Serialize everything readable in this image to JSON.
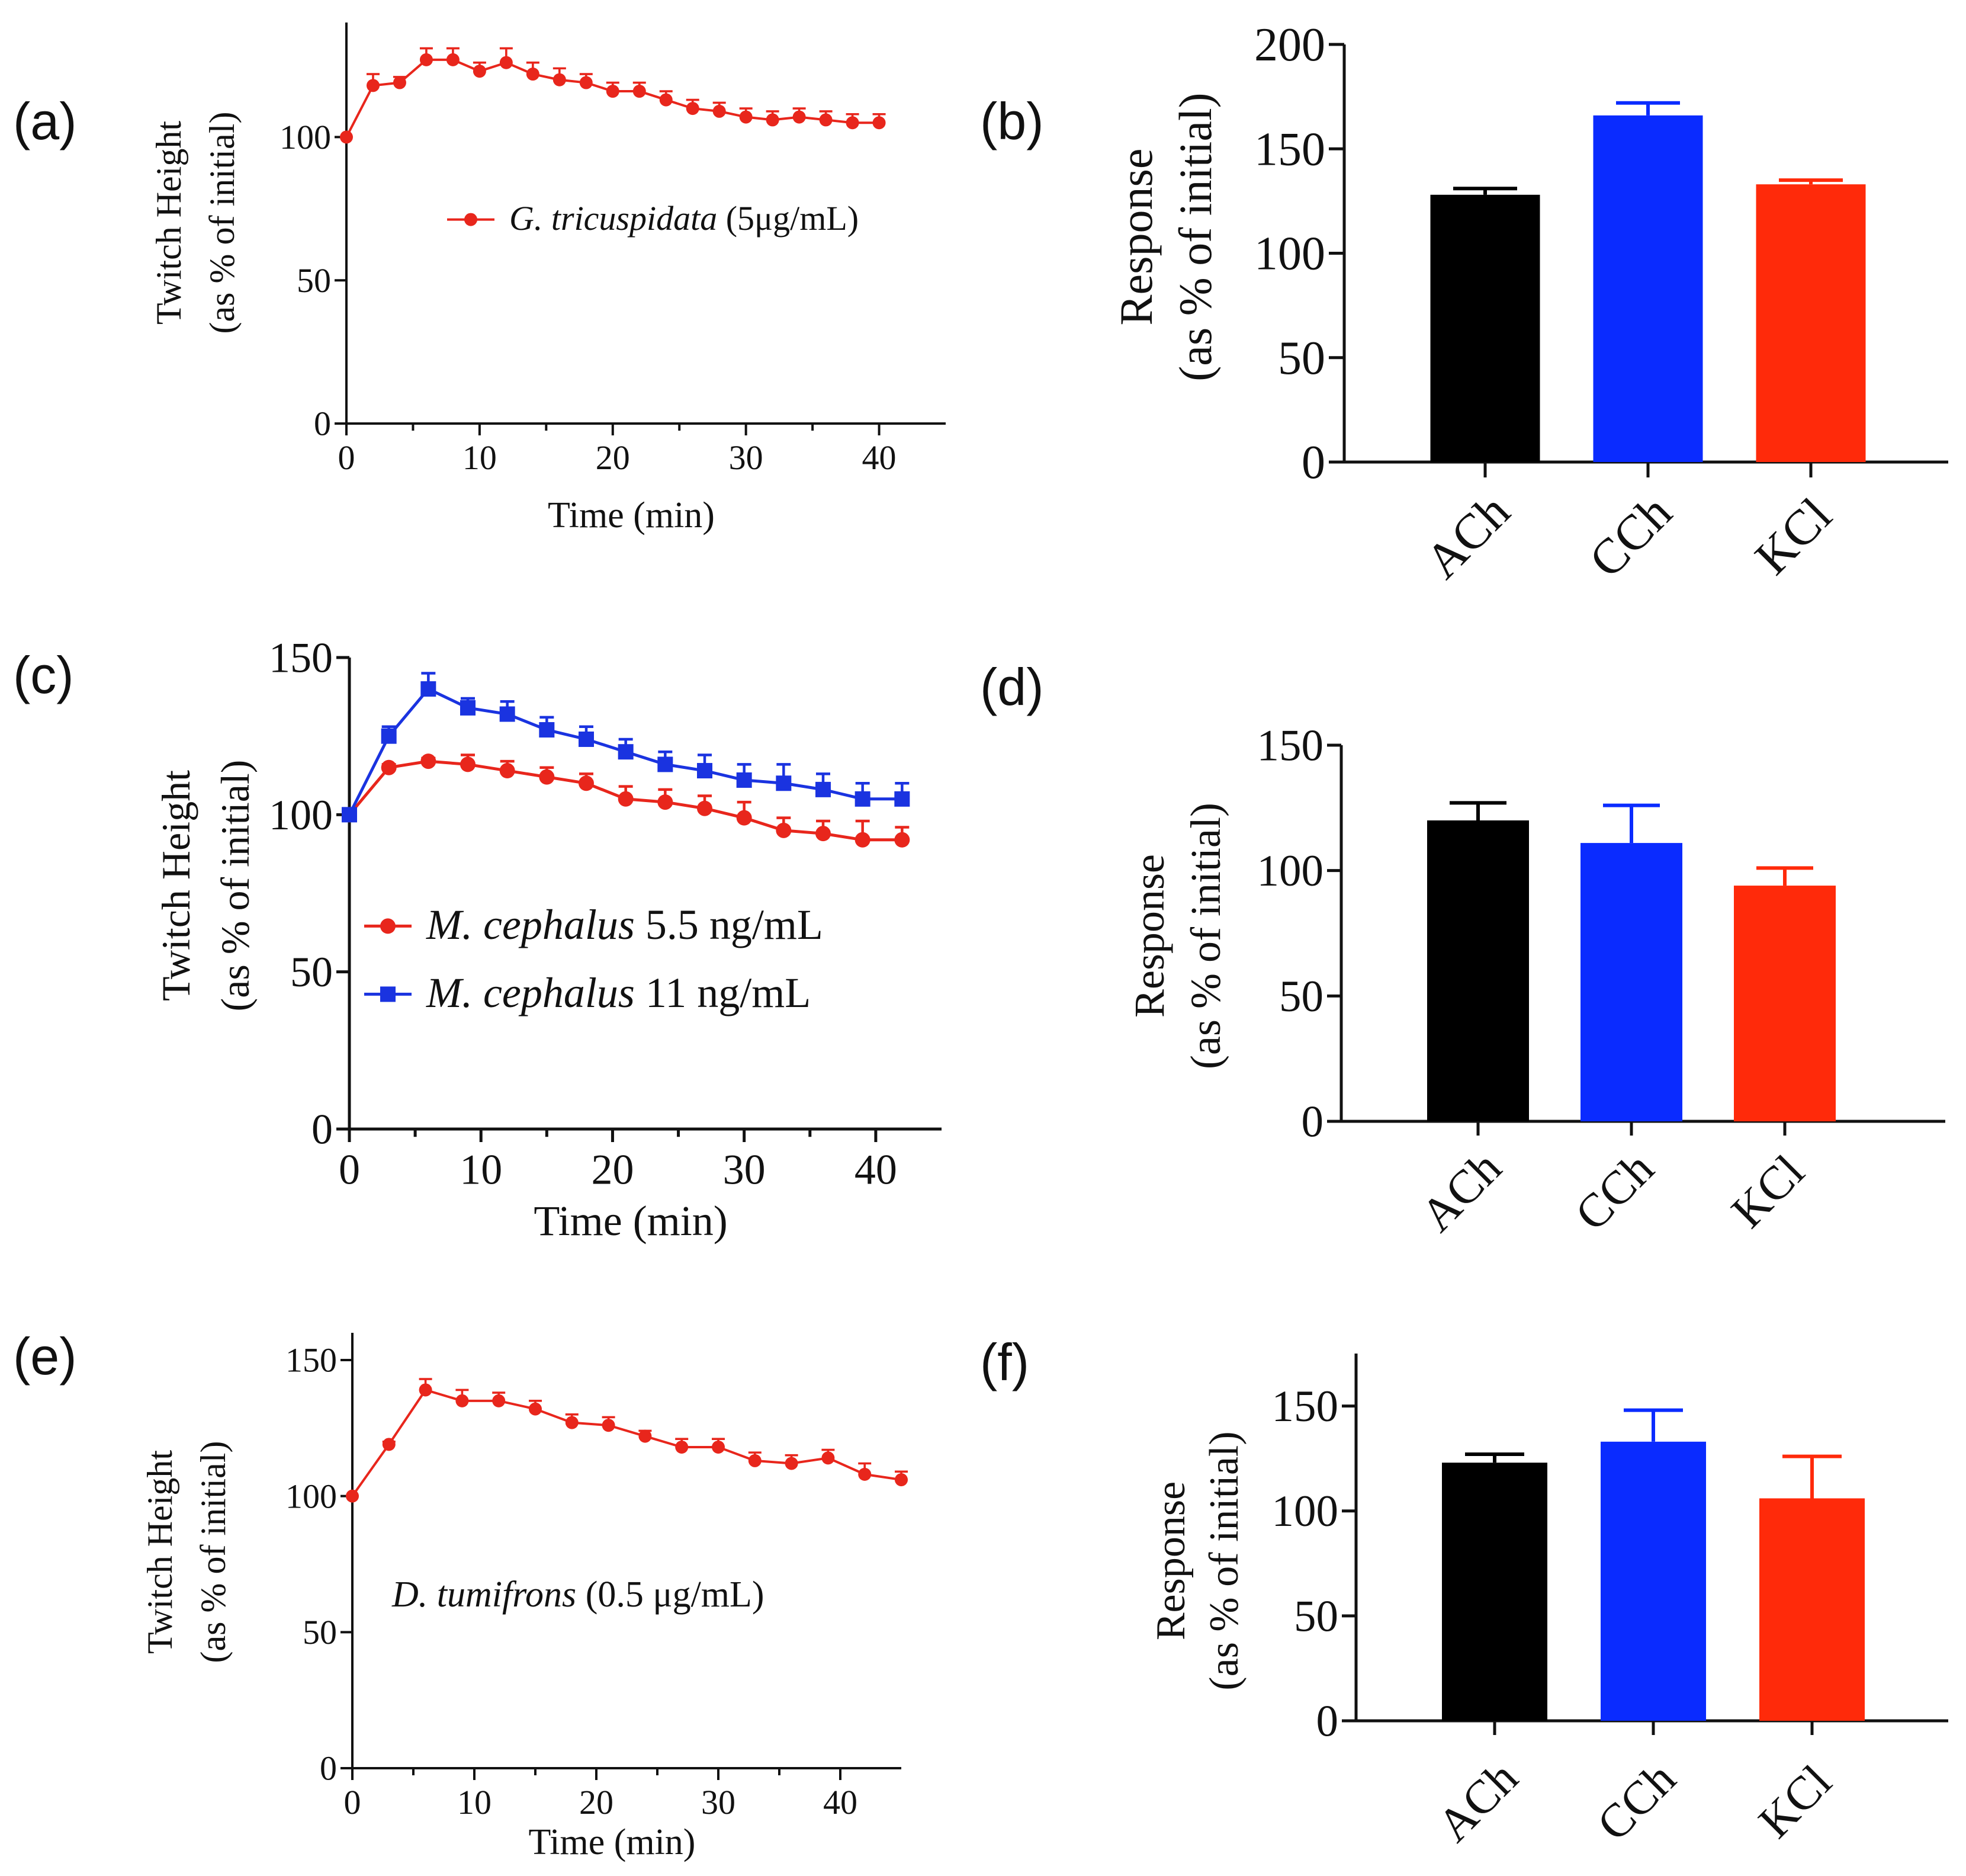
{
  "chart_data": [
    {
      "panel": "(a)",
      "type": "line",
      "title": "",
      "xlabel": "Time (min)",
      "ylabel": [
        "Twitch Height",
        "(as % of initial)"
      ],
      "xlim": [
        0,
        45
      ],
      "ylim": [
        0,
        140
      ],
      "xticks": [
        "0",
        "10",
        "20",
        "30",
        "40"
      ],
      "yticks": [
        "0",
        "50",
        "100"
      ],
      "legend": [
        {
          "species": "G. tricuspidata",
          "rest": " (5μg/mL)"
        }
      ],
      "series": [
        {
          "name": "G. tricuspidata (5μg/mL)",
          "color": "#e8261c",
          "marker": "circle",
          "x": [
            0,
            2,
            4,
            6,
            8,
            10,
            12,
            14,
            16,
            18,
            20,
            22,
            24,
            26,
            28,
            30,
            32,
            34,
            36,
            38,
            40
          ],
          "y": [
            100,
            118,
            119,
            127,
            127,
            123,
            126,
            122,
            120,
            119,
            116,
            116,
            113,
            110,
            109,
            107,
            106,
            107,
            106,
            105,
            105
          ],
          "err": [
            0,
            4,
            2,
            4,
            4,
            3,
            5,
            4,
            4,
            3,
            3,
            3,
            3,
            3,
            3,
            3,
            3,
            3,
            3,
            3,
            3
          ]
        }
      ]
    },
    {
      "panel": "(b)",
      "type": "bar",
      "title": "",
      "xlabel": "",
      "ylabel": [
        "Response",
        "(as % of initial)"
      ],
      "ylim": [
        0,
        200
      ],
      "yticks": [
        "0",
        "50",
        "100",
        "150",
        "200"
      ],
      "categories": [
        "ACh",
        "CCh",
        "KCl"
      ],
      "values": [
        128,
        166,
        133
      ],
      "err": [
        3,
        6,
        2
      ],
      "colors": [
        "#000000",
        "#0a2bff",
        "#ff2a0a"
      ]
    },
    {
      "panel": "(c)",
      "type": "line",
      "title": "",
      "xlabel": "Time (min)",
      "ylabel": [
        "Twitch Height",
        "(as % of initial)"
      ],
      "xlim": [
        0,
        45
      ],
      "ylim": [
        0,
        150
      ],
      "xticks": [
        "0",
        "10",
        "20",
        "30",
        "40"
      ],
      "yticks": [
        "0",
        "50",
        "100",
        "150"
      ],
      "legend": [
        {
          "species": "M. cephalus",
          "rest": " 5.5 ng/mL"
        },
        {
          "species": "M. cephalus",
          "rest": " 11 ng/mL"
        }
      ],
      "series": [
        {
          "name": "M. cephalus 5.5 ng/mL",
          "color": "#e8261c",
          "marker": "circle",
          "x": [
            0,
            3,
            6,
            9,
            12,
            15,
            18,
            21,
            24,
            27,
            30,
            33,
            36,
            39,
            42
          ],
          "y": [
            100,
            115,
            117,
            116,
            114,
            112,
            110,
            105,
            104,
            102,
            99,
            95,
            94,
            92,
            92
          ],
          "err": [
            0,
            1,
            1,
            3,
            3,
            3,
            3,
            4,
            4,
            4,
            5,
            4,
            4,
            6,
            4
          ]
        },
        {
          "name": "M. cephalus 11 ng/mL",
          "color": "#1a33e0",
          "marker": "square",
          "x": [
            0,
            3,
            6,
            9,
            12,
            15,
            18,
            21,
            24,
            27,
            30,
            33,
            36,
            39,
            42
          ],
          "y": [
            100,
            125,
            140,
            134,
            132,
            127,
            124,
            120,
            116,
            114,
            111,
            110,
            108,
            105,
            105
          ],
          "err": [
            0,
            3,
            5,
            3,
            4,
            4,
            4,
            4,
            4,
            5,
            5,
            6,
            5,
            5,
            5
          ]
        }
      ]
    },
    {
      "panel": "(d)",
      "type": "bar",
      "title": "",
      "xlabel": "",
      "ylabel": [
        "Response",
        "(as % of initial)"
      ],
      "ylim": [
        0,
        150
      ],
      "yticks": [
        "0",
        "50",
        "100",
        "150"
      ],
      "categories": [
        "ACh",
        "CCh",
        "KCl"
      ],
      "values": [
        120,
        111,
        94
      ],
      "err": [
        7,
        15,
        7
      ],
      "colors": [
        "#000000",
        "#0a2bff",
        "#ff2a0a"
      ]
    },
    {
      "panel": "(e)",
      "type": "line",
      "title": "",
      "xlabel": "Time (min)",
      "ylabel": [
        "Twitch Height",
        "(as % of initial)"
      ],
      "xlim": [
        0,
        45
      ],
      "ylim": [
        0,
        160
      ],
      "xticks": [
        "0",
        "10",
        "20",
        "30",
        "40"
      ],
      "yticks": [
        "0",
        "50",
        "100",
        "150"
      ],
      "legend": [],
      "annotation": {
        "species": "D. tumifrons",
        "rest": " (0.5 μg/mL)"
      },
      "series": [
        {
          "name": "D. tumifrons (0.5 μg/mL)",
          "color": "#e8261c",
          "marker": "circle",
          "x": [
            0,
            3,
            6,
            9,
            12,
            15,
            18,
            21,
            24,
            27,
            30,
            33,
            36,
            39,
            42,
            45
          ],
          "y": [
            100,
            119,
            139,
            135,
            135,
            132,
            127,
            126,
            122,
            118,
            118,
            113,
            112,
            114,
            108,
            106
          ],
          "err": [
            0,
            1,
            4,
            4,
            3,
            3,
            3,
            3,
            2,
            3,
            3,
            3,
            3,
            3,
            4,
            3
          ]
        }
      ]
    },
    {
      "panel": "(f)",
      "type": "bar",
      "title": "",
      "xlabel": "",
      "ylabel": [
        "Response",
        "(as % of initial)"
      ],
      "ylim": [
        0,
        175
      ],
      "yticks": [
        "0",
        "50",
        "100",
        "150"
      ],
      "categories": [
        "ACh",
        "CCh",
        "KCl"
      ],
      "values": [
        123,
        133,
        106
      ],
      "err": [
        4,
        15,
        20
      ],
      "colors": [
        "#000000",
        "#0a2bff",
        "#ff2a0a"
      ]
    }
  ]
}
